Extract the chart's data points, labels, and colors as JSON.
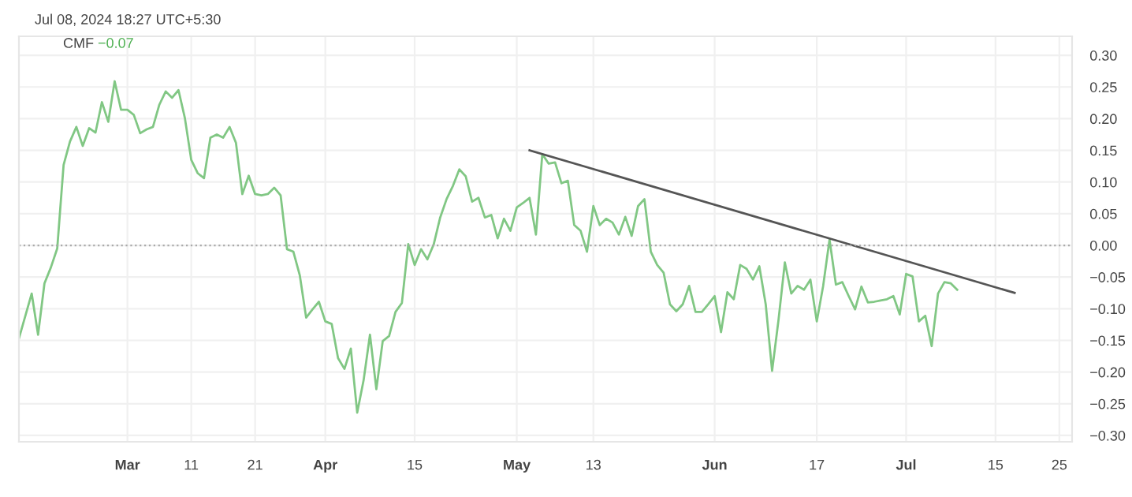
{
  "chart_data": {
    "type": "line",
    "title": "CMF",
    "annotations": [
      "Jul 08, 2024 18:27 UTC+5:30",
      "−0.07"
    ],
    "x": [
      "2024-02-13",
      "2024-02-15",
      "2024-02-16",
      "2024-02-17",
      "2024-02-18",
      "2024-02-19",
      "2024-02-20",
      "2024-02-21",
      "2024-02-22",
      "2024-02-23",
      "2024-02-24",
      "2024-02-25",
      "2024-02-26",
      "2024-02-27",
      "2024-02-28",
      "2024-02-29",
      "2024-03-01",
      "2024-03-02",
      "2024-03-03",
      "2024-03-04",
      "2024-03-05",
      "2024-03-06",
      "2024-03-07",
      "2024-03-08",
      "2024-03-09",
      "2024-03-10",
      "2024-03-11",
      "2024-03-12",
      "2024-03-13",
      "2024-03-14",
      "2024-03-15",
      "2024-03-16",
      "2024-03-17",
      "2024-03-18",
      "2024-03-19",
      "2024-03-20",
      "2024-03-21",
      "2024-03-22",
      "2024-03-23",
      "2024-03-24",
      "2024-03-25",
      "2024-03-26",
      "2024-03-27",
      "2024-03-28",
      "2024-03-29",
      "2024-03-30",
      "2024-03-31",
      "2024-04-01",
      "2024-04-02",
      "2024-04-03",
      "2024-04-04",
      "2024-04-05",
      "2024-04-06",
      "2024-04-07",
      "2024-04-08",
      "2024-04-09",
      "2024-04-10",
      "2024-04-11",
      "2024-04-12",
      "2024-04-13",
      "2024-04-14",
      "2024-04-15",
      "2024-04-16",
      "2024-04-17",
      "2024-04-18",
      "2024-04-19",
      "2024-04-20",
      "2024-04-21",
      "2024-04-22",
      "2024-04-23",
      "2024-04-24",
      "2024-04-25",
      "2024-04-26",
      "2024-04-27",
      "2024-04-28",
      "2024-04-29",
      "2024-04-30",
      "2024-05-01",
      "2024-05-02",
      "2024-05-03",
      "2024-05-04",
      "2024-05-05",
      "2024-05-06",
      "2024-05-07",
      "2024-05-08",
      "2024-05-09",
      "2024-05-10",
      "2024-05-11",
      "2024-05-12",
      "2024-05-13",
      "2024-05-14",
      "2024-05-15",
      "2024-05-16",
      "2024-05-17",
      "2024-05-18",
      "2024-05-19",
      "2024-05-20",
      "2024-05-21",
      "2024-05-22",
      "2024-05-23",
      "2024-05-24",
      "2024-05-25",
      "2024-05-26",
      "2024-05-27",
      "2024-05-28",
      "2024-05-29",
      "2024-05-30",
      "2024-05-31",
      "2024-06-01",
      "2024-06-02",
      "2024-06-03",
      "2024-06-04",
      "2024-06-05",
      "2024-06-06",
      "2024-06-07",
      "2024-06-08",
      "2024-06-09",
      "2024-06-10",
      "2024-06-11",
      "2024-06-12",
      "2024-06-13",
      "2024-06-14",
      "2024-06-15",
      "2024-06-16",
      "2024-06-17",
      "2024-06-18",
      "2024-06-19",
      "2024-06-20",
      "2024-06-21",
      "2024-06-22",
      "2024-06-23",
      "2024-06-24",
      "2024-06-25",
      "2024-06-26",
      "2024-06-27",
      "2024-06-28",
      "2024-06-29",
      "2024-06-30",
      "2024-07-01",
      "2024-07-02",
      "2024-07-03",
      "2024-07-04",
      "2024-07-05",
      "2024-07-06",
      "2024-07-07",
      "2024-07-08",
      "2024-07-09"
    ],
    "series": [
      {
        "color": "#81c784",
        "values": [
          -0.147,
          -0.076,
          -0.141,
          -0.06,
          -0.035,
          -0.005,
          0.127,
          0.164,
          0.187,
          0.157,
          0.185,
          0.178,
          0.226,
          0.195,
          0.259,
          0.214,
          0.214,
          0.206,
          0.177,
          0.183,
          0.187,
          0.222,
          0.243,
          0.233,
          0.245,
          0.201,
          0.135,
          0.114,
          0.106,
          0.17,
          0.175,
          0.17,
          0.187,
          0.162,
          0.081,
          0.11,
          0.081,
          0.079,
          0.081,
          0.091,
          0.079,
          -0.006,
          -0.01,
          -0.047,
          -0.114,
          -0.101,
          -0.089,
          -0.12,
          -0.124,
          -0.178,
          -0.195,
          -0.163,
          -0.264,
          -0.213,
          -0.141,
          -0.227,
          -0.151,
          -0.143,
          -0.105,
          -0.091,
          0.002,
          -0.031,
          -0.006,
          -0.022,
          0.002,
          0.044,
          0.073,
          0.094,
          0.12,
          0.109,
          0.069,
          0.075,
          0.044,
          0.048,
          0.011,
          0.042,
          0.023,
          0.06,
          0.067,
          0.075,
          0.017,
          0.144,
          0.129,
          0.131,
          0.098,
          0.102,
          0.032,
          0.023,
          -0.01,
          0.062,
          0.032,
          0.042,
          0.036,
          0.017,
          0.045,
          0.015,
          0.062,
          0.073,
          -0.01,
          -0.031,
          -0.043,
          -0.093,
          -0.104,
          -0.093,
          -0.064,
          -0.105,
          -0.105,
          -0.093,
          -0.08,
          -0.137,
          -0.074,
          -0.085,
          -0.031,
          -0.037,
          -0.054,
          -0.033,
          -0.093,
          -0.198,
          -0.118,
          -0.027,
          -0.076,
          -0.064,
          -0.07,
          -0.054,
          -0.12,
          -0.064,
          0.009,
          -0.062,
          -0.058,
          -0.08,
          -0.101,
          -0.065,
          -0.09,
          -0.089,
          -0.087,
          -0.085,
          -0.08,
          -0.109,
          -0.045,
          -0.049,
          -0.12,
          -0.111,
          -0.159,
          -0.076,
          -0.058,
          -0.06,
          -0.07
        ]
      },
      {
        "type": "line",
        "color": "#555555",
        "x": [
          "2024-05-03",
          "2024-07-18"
        ],
        "values": [
          0.15,
          -0.075
        ]
      }
    ],
    "ref_lines": [
      {
        "axis": "y",
        "value": 0,
        "color": "#aaaaaa",
        "line_style": "dotted"
      }
    ],
    "xlim": [
      "2024-02-13",
      "2024-07-27"
    ],
    "xticks": [
      {
        "value": "2024-03-01",
        "label": "Mar"
      },
      {
        "value": "2024-03-11",
        "label": "11"
      },
      {
        "value": "2024-03-21",
        "label": "21"
      },
      {
        "value": "2024-04-01",
        "label": "Apr"
      },
      {
        "value": "2024-04-15",
        "label": "15"
      },
      {
        "value": "2024-05-01",
        "label": "May"
      },
      {
        "value": "2024-05-13",
        "label": "13"
      },
      {
        "value": "2024-06-01",
        "label": "Jun"
      },
      {
        "value": "2024-06-17",
        "label": "17"
      },
      {
        "value": "2024-07-01",
        "label": "Jul"
      },
      {
        "value": "2024-07-15",
        "label": "15"
      },
      {
        "value": "2024-07-25",
        "label": "25"
      }
    ],
    "ylim": [
      -0.31,
      0.33
    ],
    "yticks": [
      {
        "value": 0.3,
        "label": "0.30"
      },
      {
        "value": 0.25,
        "label": "0.25"
      },
      {
        "value": 0.2,
        "label": "0.20"
      },
      {
        "value": 0.15,
        "label": "0.15"
      },
      {
        "value": 0.1,
        "label": "0.10"
      },
      {
        "value": 0.05,
        "label": "0.05"
      },
      {
        "value": 0,
        "label": "0.00"
      },
      {
        "value": -0.05,
        "label": "−0.05"
      },
      {
        "value": -0.1,
        "label": "−0.10"
      },
      {
        "value": -0.15,
        "label": "−0.15"
      },
      {
        "value": -0.2,
        "label": "−0.20"
      },
      {
        "value": -0.25,
        "label": "−0.25"
      },
      {
        "value": -0.3,
        "label": "−0.30"
      }
    ],
    "grid": true,
    "legend": false
  }
}
